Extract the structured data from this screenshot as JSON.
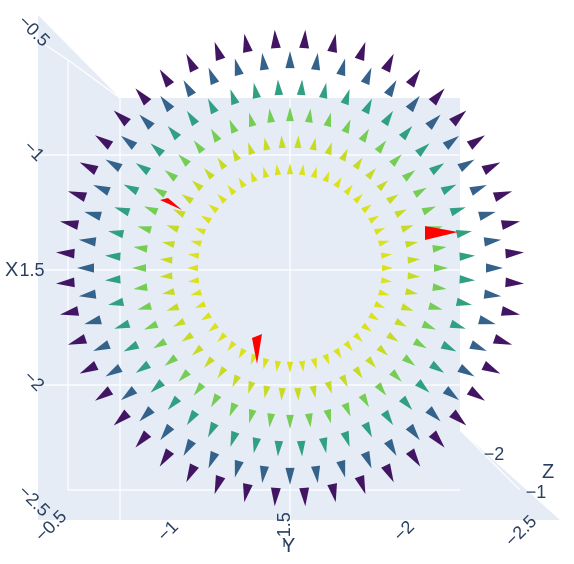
{
  "chart_data": {
    "type": "cone",
    "title": "",
    "axes": {
      "x": {
        "title": "X",
        "ticks": [
          "−0.5",
          "−1",
          "−1.5",
          "−2",
          "−2.5"
        ]
      },
      "y": {
        "title": "Y",
        "ticks": [
          "−0.5",
          "−1",
          "−1.5",
          "−2",
          "−2.5"
        ]
      },
      "z": {
        "title": "Z",
        "ticks": [
          "−2",
          "−1"
        ]
      }
    },
    "colorscale": "Viridis",
    "showscale": false,
    "field": {
      "description_center": [
        -1.5,
        -1.5
      ],
      "rings": 6,
      "cones_per_ring": 48,
      "direction": "radially outward"
    },
    "highlight_color": "#ff0000",
    "pane_color": "#e5ecf6",
    "grid_color": "#ffffff"
  }
}
